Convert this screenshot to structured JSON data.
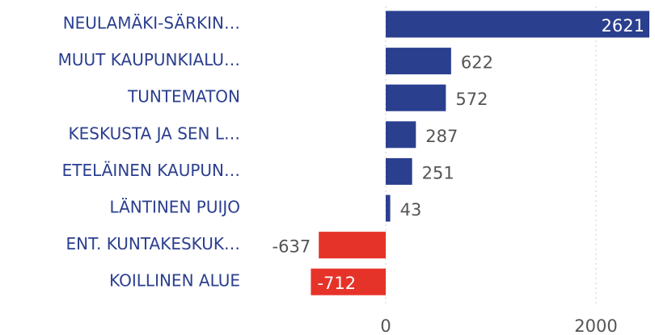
{
  "chart_data": {
    "type": "barh",
    "categories": [
      "NEULAMÄKI-SÄRKIN…",
      "MUUT KAUPUNKIALU…",
      "TUNTEMATON",
      "KESKUSTA JA SEN L…",
      "ETELÄINEN KAUPUN…",
      "LÄNTINEN PUIJO",
      "ENT. KUNTAKESKUK…",
      "KOILLINEN ALUE"
    ],
    "values": [
      2621,
      622,
      572,
      287,
      251,
      43,
      -637,
      -712
    ],
    "color": "#2b3f8f",
    "negative_color": "#e63329",
    "xlim": [
      -1300,
      2500
    ],
    "xticks": [
      0,
      2000
    ],
    "grid": true
  }
}
